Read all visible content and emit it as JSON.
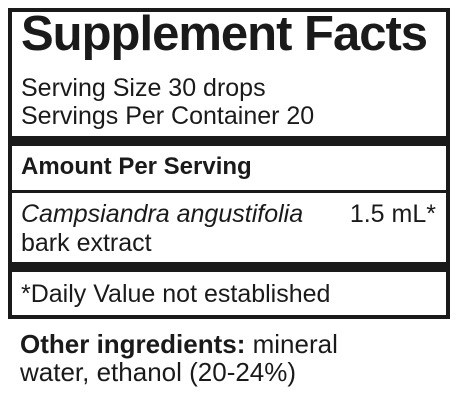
{
  "panel": {
    "title": "Supplement Facts",
    "serving_size": "Serving Size 30 drops",
    "servings_per_container": "Servings Per Container 20",
    "amount_header": "Amount Per Serving",
    "ingredient": {
      "name": "Campsiandra angustifolia",
      "amount": "1.5 mL*",
      "part": "bark extract"
    },
    "daily_value_note": "*Daily Value not established"
  },
  "other_ingredients": {
    "label": "Other ingredients:",
    "line1": "mineral",
    "line2": "water, ethanol (20-24%)"
  }
}
